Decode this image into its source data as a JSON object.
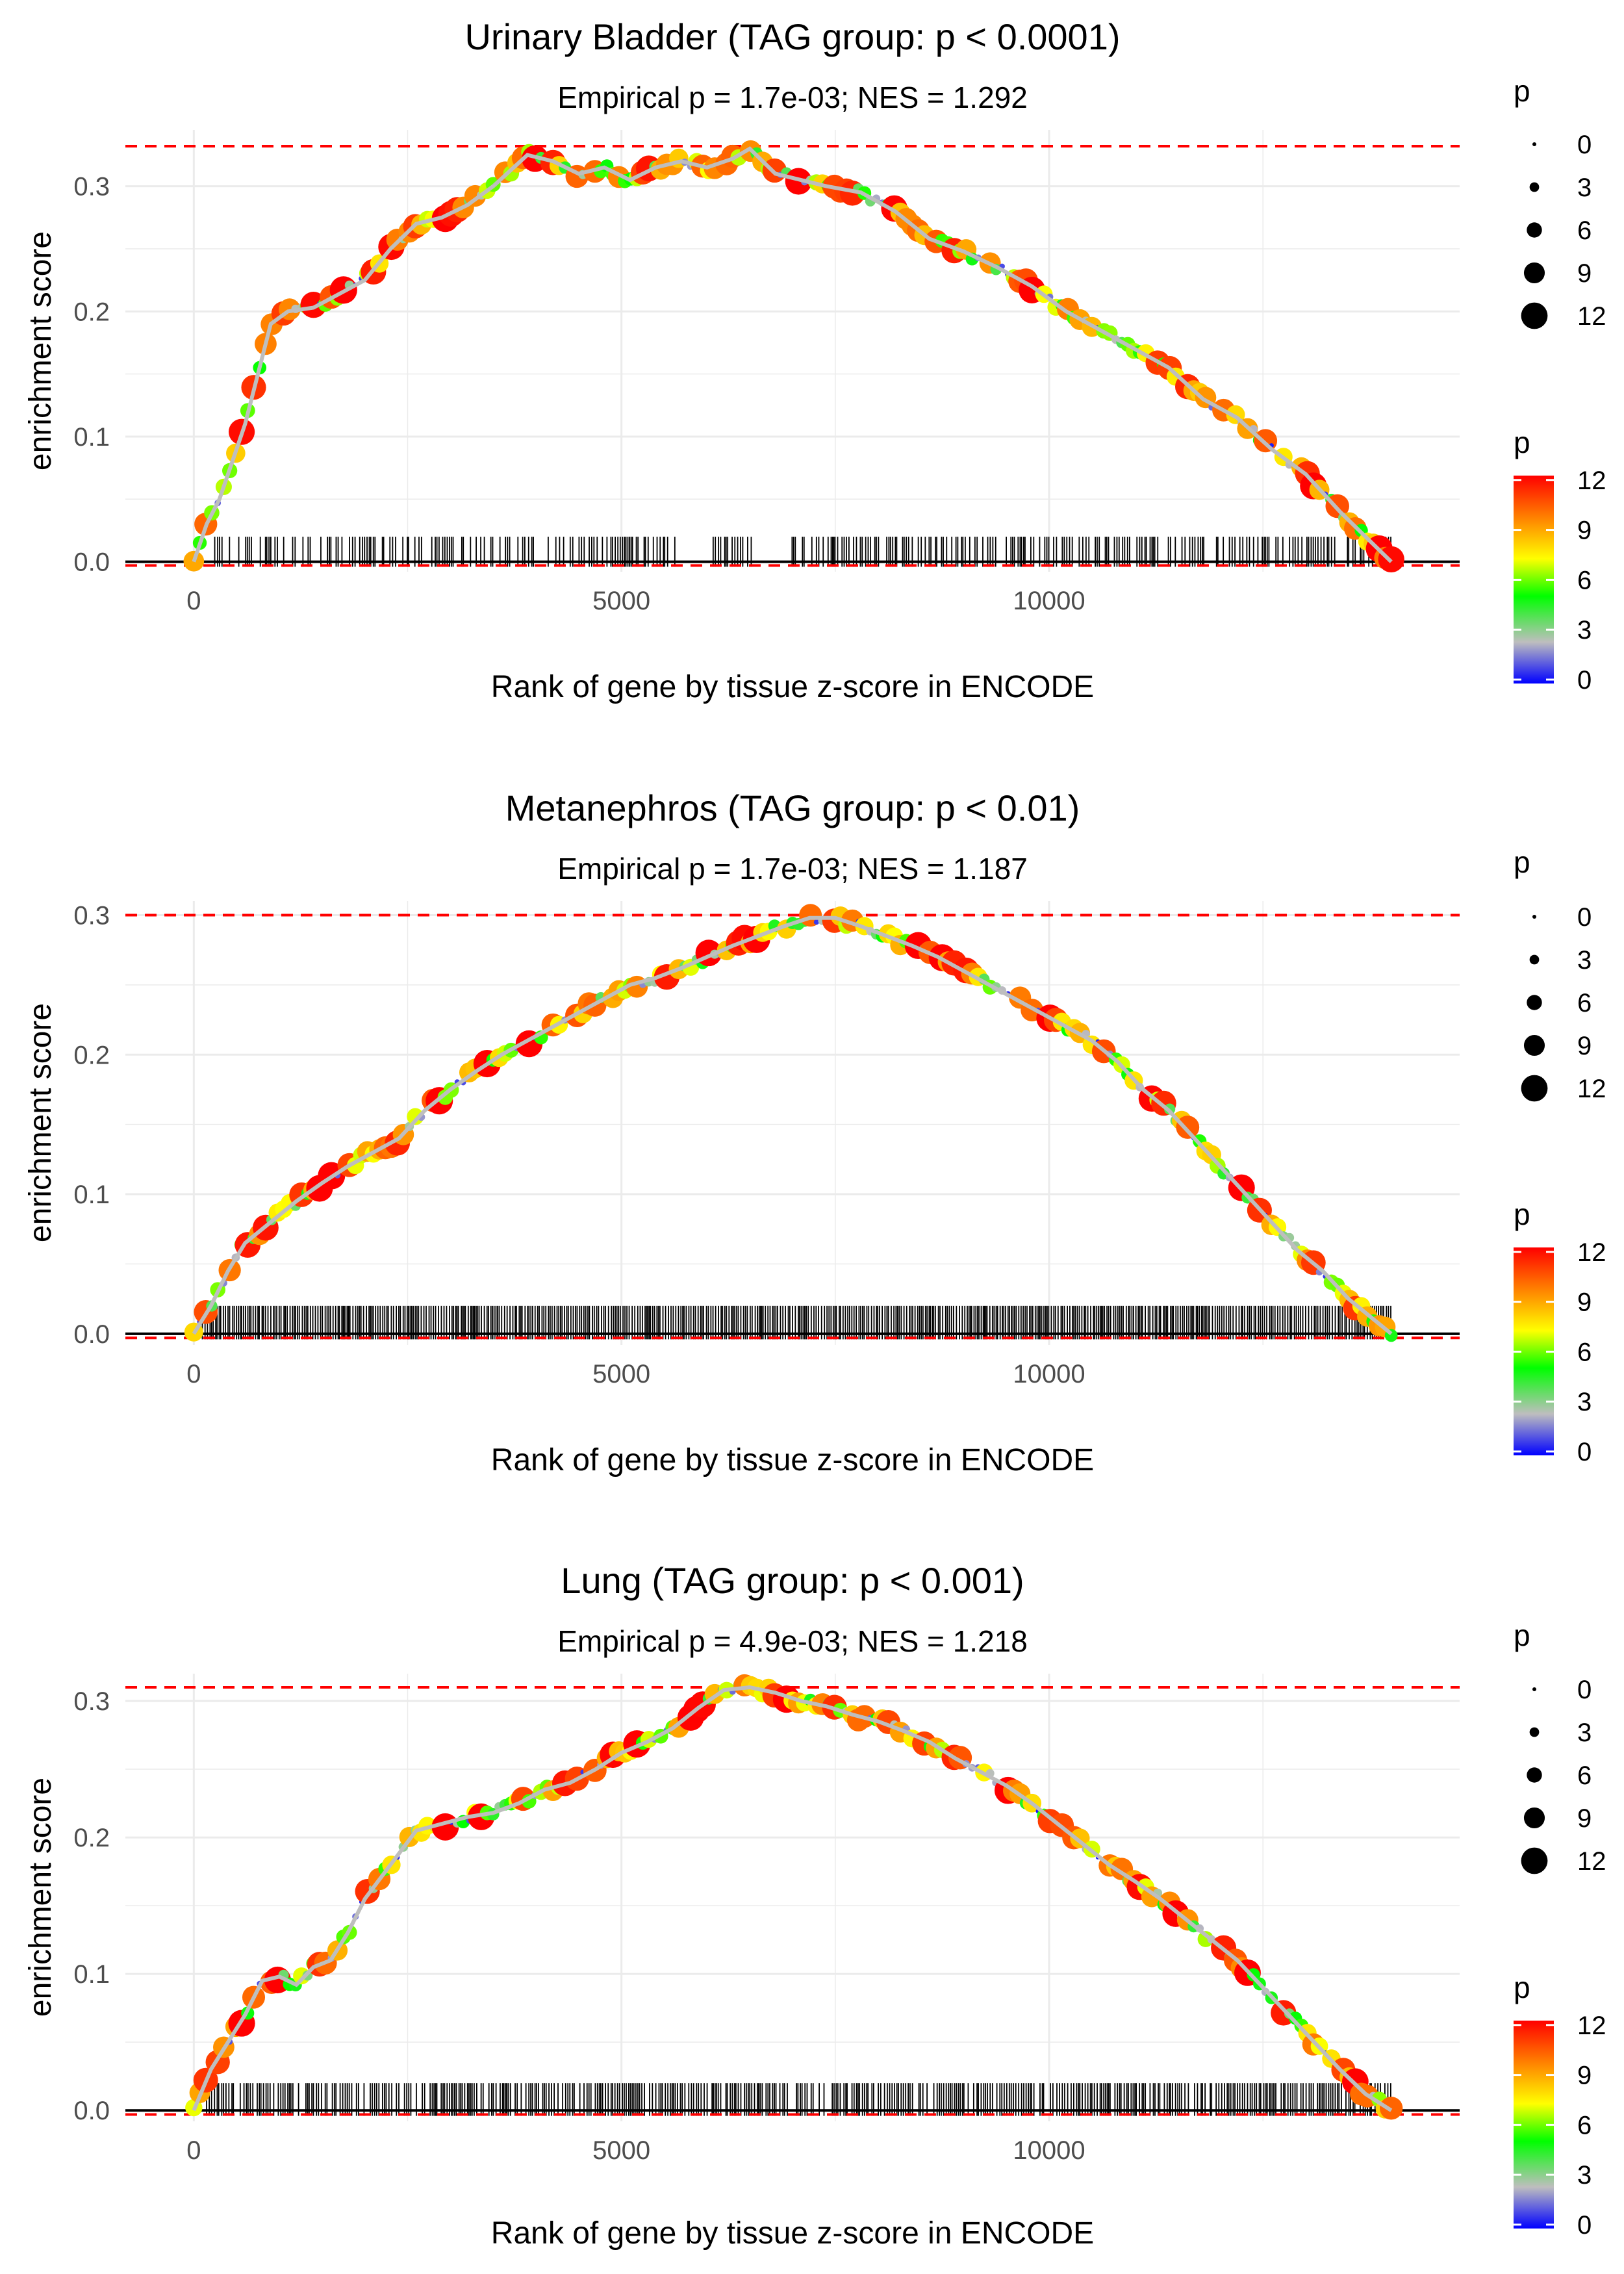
{
  "figure": {
    "type": "gsea-enrichment-panels",
    "x_axis_max_rank": 14000
  },
  "colors": {
    "gridline": "#ebebeb",
    "axis_text": "#4d4d4d",
    "zero_line": "#000000",
    "max_line": "#ff0000",
    "running_line": "#bebebe",
    "rug_tick": "#000000",
    "gradient": [
      "#0000ff",
      "#bebebe",
      "#00ff00",
      "#ffff00",
      "#ff8000",
      "#ff0000"
    ]
  },
  "chart_data": [
    {
      "type": "scatter",
      "title": "Urinary Bladder (TAG group: p < 0.0001)",
      "subtitle": "Empirical p = 1.7e-03; NES = 1.292",
      "xlabel": "Rank of gene by tissue z-score in ENCODE",
      "ylabel": "enrichment score",
      "xlim": [
        -800,
        14800
      ],
      "ylim": [
        -0.008,
        0.345
      ],
      "xticks": [
        0,
        5000,
        10000
      ],
      "xtick_labels": [
        "0",
        "5000",
        "10000"
      ],
      "yticks": [
        0.0,
        0.1,
        0.2,
        0.3
      ],
      "ytick_labels": [
        "0.0",
        "0.1",
        "0.2",
        "0.3"
      ],
      "max_es": 0.332,
      "min_es": -0.003,
      "curve": [
        [
          0,
          0
        ],
        [
          150,
          0.03
        ],
        [
          300,
          0.05
        ],
        [
          450,
          0.08
        ],
        [
          600,
          0.11
        ],
        [
          750,
          0.15
        ],
        [
          900,
          0.19
        ],
        [
          1100,
          0.2
        ],
        [
          1400,
          0.203
        ],
        [
          1700,
          0.214
        ],
        [
          2000,
          0.225
        ],
        [
          2300,
          0.25
        ],
        [
          2600,
          0.27
        ],
        [
          2900,
          0.275
        ],
        [
          3200,
          0.285
        ],
        [
          3500,
          0.3
        ],
        [
          3900,
          0.325
        ],
        [
          4200,
          0.32
        ],
        [
          4500,
          0.31
        ],
        [
          4800,
          0.315
        ],
        [
          5100,
          0.305
        ],
        [
          5400,
          0.315
        ],
        [
          5700,
          0.32
        ],
        [
          6000,
          0.315
        ],
        [
          6300,
          0.322
        ],
        [
          6500,
          0.33
        ],
        [
          6800,
          0.31
        ],
        [
          7100,
          0.305
        ],
        [
          7400,
          0.3
        ],
        [
          7800,
          0.295
        ],
        [
          8200,
          0.28
        ],
        [
          8600,
          0.258
        ],
        [
          9000,
          0.248
        ],
        [
          9400,
          0.235
        ],
        [
          9800,
          0.22
        ],
        [
          10200,
          0.2
        ],
        [
          10600,
          0.185
        ],
        [
          11000,
          0.17
        ],
        [
          11400,
          0.155
        ],
        [
          11800,
          0.13
        ],
        [
          12200,
          0.115
        ],
        [
          12600,
          0.09
        ],
        [
          13000,
          0.07
        ],
        [
          13400,
          0.04
        ],
        [
          13700,
          0.02
        ],
        [
          14000,
          0.0
        ]
      ],
      "rug": {
        "start": 200,
        "end": 14000,
        "gaps": [
          [
            5650,
            6050
          ],
          [
            6550,
            6950
          ]
        ],
        "density": 0.6
      },
      "size_legend": {
        "title": "p",
        "breaks": [
          "0",
          "3",
          "6",
          "9",
          "12"
        ]
      },
      "color_legend": {
        "title": "p",
        "ticks": [
          "12",
          "9",
          "6",
          "3",
          "0"
        ]
      }
    },
    {
      "type": "scatter",
      "title": "Metanephros (TAG group: p < 0.01)",
      "subtitle": "Empirical p = 1.7e-03; NES = 1.187",
      "xlabel": "Rank of gene by tissue z-score in ENCODE",
      "ylabel": "enrichment score",
      "xlim": [
        -800,
        14800
      ],
      "ylim": [
        -0.008,
        0.31
      ],
      "xticks": [
        0,
        5000,
        10000
      ],
      "xtick_labels": [
        "0",
        "5000",
        "10000"
      ],
      "yticks": [
        0.0,
        0.1,
        0.2,
        0.3
      ],
      "ytick_labels": [
        "0.0",
        "0.1",
        "0.2",
        "0.3"
      ],
      "max_es": 0.3,
      "min_es": -0.003,
      "curve": [
        [
          0,
          0
        ],
        [
          200,
          0.02
        ],
        [
          400,
          0.045
        ],
        [
          600,
          0.065
        ],
        [
          900,
          0.08
        ],
        [
          1200,
          0.095
        ],
        [
          1500,
          0.108
        ],
        [
          1800,
          0.12
        ],
        [
          2100,
          0.13
        ],
        [
          2400,
          0.14
        ],
        [
          2700,
          0.16
        ],
        [
          3000,
          0.175
        ],
        [
          3300,
          0.188
        ],
        [
          3600,
          0.2
        ],
        [
          3900,
          0.21
        ],
        [
          4200,
          0.22
        ],
        [
          4500,
          0.23
        ],
        [
          4800,
          0.24
        ],
        [
          5100,
          0.25
        ],
        [
          5400,
          0.255
        ],
        [
          5700,
          0.262
        ],
        [
          6000,
          0.27
        ],
        [
          6300,
          0.278
        ],
        [
          6600,
          0.285
        ],
        [
          6900,
          0.292
        ],
        [
          7200,
          0.298
        ],
        [
          7500,
          0.298
        ],
        [
          7800,
          0.292
        ],
        [
          8100,
          0.285
        ],
        [
          8400,
          0.278
        ],
        [
          8700,
          0.27
        ],
        [
          9000,
          0.26
        ],
        [
          9300,
          0.25
        ],
        [
          9600,
          0.24
        ],
        [
          9900,
          0.23
        ],
        [
          10200,
          0.22
        ],
        [
          10500,
          0.21
        ],
        [
          10800,
          0.195
        ],
        [
          11100,
          0.175
        ],
        [
          11400,
          0.16
        ],
        [
          11700,
          0.14
        ],
        [
          12000,
          0.12
        ],
        [
          12300,
          0.1
        ],
        [
          12600,
          0.08
        ],
        [
          12900,
          0.06
        ],
        [
          13200,
          0.045
        ],
        [
          13500,
          0.025
        ],
        [
          13800,
          0.01
        ],
        [
          14000,
          0.0
        ]
      ],
      "rug": {
        "start": 100,
        "end": 14000,
        "gaps": [],
        "density": 1.0
      },
      "size_legend": {
        "title": "p",
        "breaks": [
          "0",
          "3",
          "6",
          "9",
          "12"
        ]
      },
      "color_legend": {
        "title": "p",
        "ticks": [
          "12",
          "9",
          "6",
          "3",
          "0"
        ]
      }
    },
    {
      "type": "scatter",
      "title": "Lung (TAG group: p < 0.001)",
      "subtitle": "Empirical p = 4.9e-03; NES = 1.218",
      "xlabel": "Rank of gene by tissue z-score in ENCODE",
      "ylabel": "enrichment score",
      "xlim": [
        -800,
        14800
      ],
      "ylim": [
        -0.008,
        0.32
      ],
      "xticks": [
        0,
        5000,
        10000
      ],
      "xtick_labels": [
        "0",
        "5000",
        "10000"
      ],
      "yticks": [
        0.0,
        0.1,
        0.2,
        0.3
      ],
      "ytick_labels": [
        "0.0",
        "0.1",
        "0.2",
        "0.3"
      ],
      "max_es": 0.31,
      "min_es": -0.003,
      "curve": [
        [
          0,
          0
        ],
        [
          200,
          0.03
        ],
        [
          400,
          0.05
        ],
        [
          600,
          0.07
        ],
        [
          800,
          0.095
        ],
        [
          1000,
          0.098
        ],
        [
          1200,
          0.092
        ],
        [
          1400,
          0.105
        ],
        [
          1600,
          0.11
        ],
        [
          1800,
          0.13
        ],
        [
          2000,
          0.155
        ],
        [
          2300,
          0.18
        ],
        [
          2600,
          0.205
        ],
        [
          2900,
          0.21
        ],
        [
          3200,
          0.215
        ],
        [
          3500,
          0.218
        ],
        [
          3800,
          0.225
        ],
        [
          4100,
          0.235
        ],
        [
          4400,
          0.24
        ],
        [
          4700,
          0.25
        ],
        [
          5000,
          0.262
        ],
        [
          5300,
          0.27
        ],
        [
          5600,
          0.28
        ],
        [
          5900,
          0.295
        ],
        [
          6200,
          0.308
        ],
        [
          6500,
          0.31
        ],
        [
          6800,
          0.306
        ],
        [
          7100,
          0.3
        ],
        [
          7400,
          0.296
        ],
        [
          7700,
          0.29
        ],
        [
          8000,
          0.285
        ],
        [
          8300,
          0.278
        ],
        [
          8600,
          0.27
        ],
        [
          8900,
          0.258
        ],
        [
          9200,
          0.248
        ],
        [
          9500,
          0.238
        ],
        [
          9800,
          0.225
        ],
        [
          10100,
          0.21
        ],
        [
          10400,
          0.195
        ],
        [
          10700,
          0.18
        ],
        [
          11000,
          0.168
        ],
        [
          11300,
          0.155
        ],
        [
          11600,
          0.14
        ],
        [
          11900,
          0.125
        ],
        [
          12200,
          0.11
        ],
        [
          12500,
          0.09
        ],
        [
          12800,
          0.07
        ],
        [
          13100,
          0.05
        ],
        [
          13400,
          0.03
        ],
        [
          13700,
          0.012
        ],
        [
          14000,
          0.0
        ]
      ],
      "rug": {
        "start": 150,
        "end": 14000,
        "gaps": [],
        "density": 0.85
      },
      "size_legend": {
        "title": "p",
        "breaks": [
          "0",
          "3",
          "6",
          "9",
          "12"
        ]
      },
      "color_legend": {
        "title": "p",
        "ticks": [
          "12",
          "9",
          "6",
          "3",
          "0"
        ]
      }
    }
  ]
}
